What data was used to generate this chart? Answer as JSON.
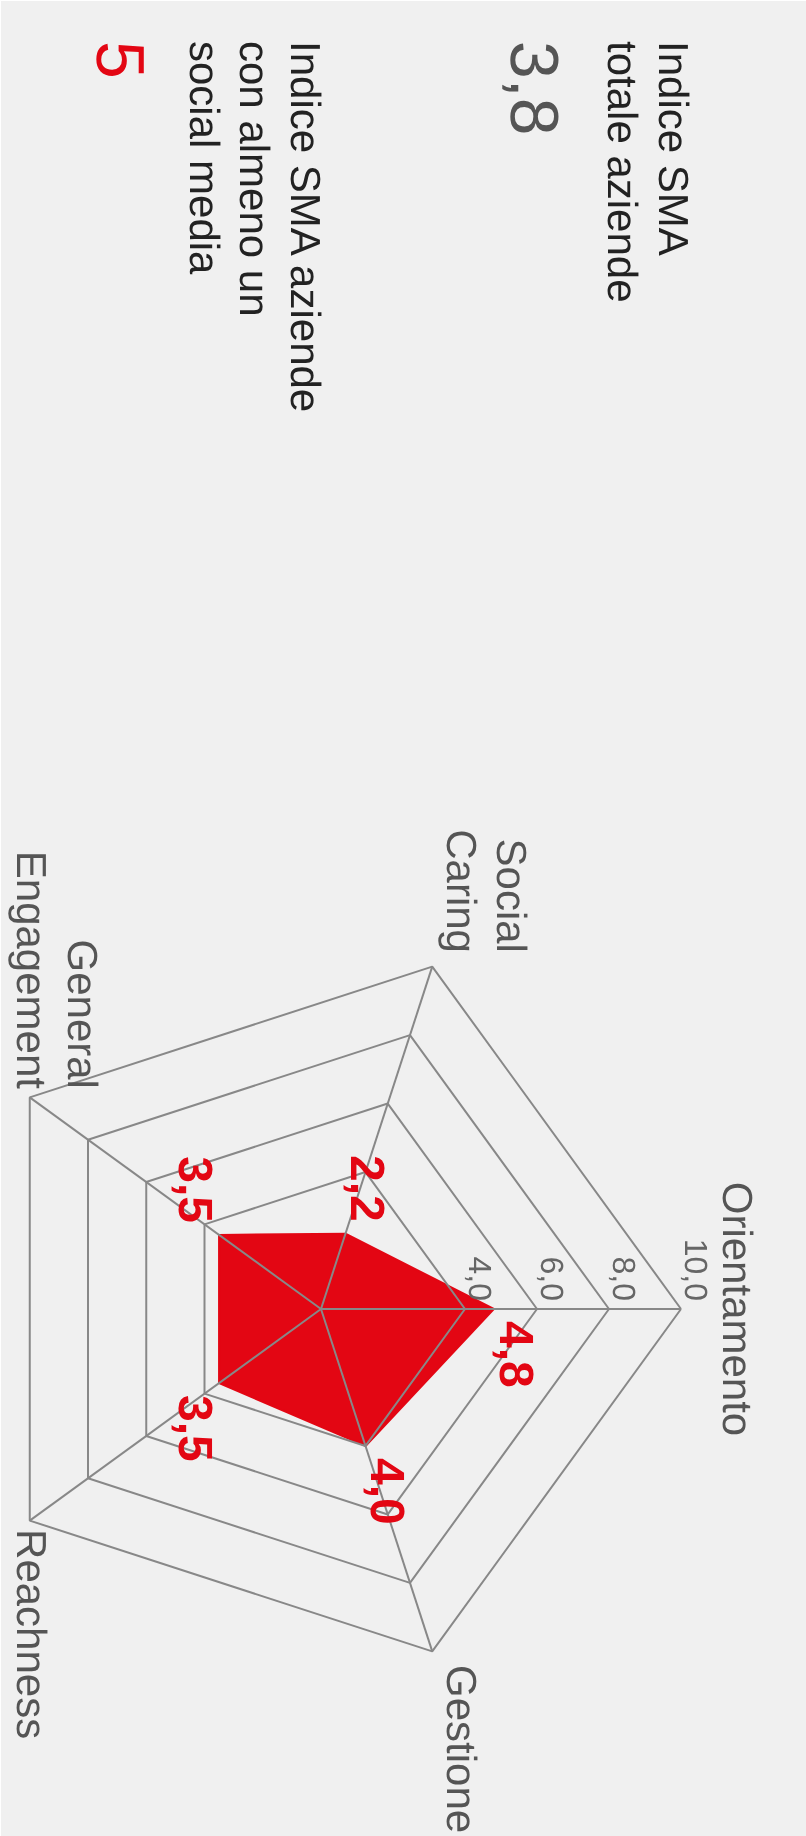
{
  "chart_data": [
    {
      "type": "other",
      "annotations": [
        "Indice SMA totale aziende",
        "3,8",
        "Indice SMA aziende con almeno un social media",
        "5"
      ],
      "colors": [
        "#222222",
        "#555555",
        "#222222",
        "#e30613"
      ]
    },
    {
      "type": "radar",
      "categories": [
        "Orientamento",
        "Gestione",
        "Reachness",
        "General Engagement",
        "Social Caring"
      ],
      "series": [
        {
          "color": "#e30613",
          "values": [
            4.8,
            4.0,
            3.5,
            3.5,
            2.2
          ],
          "value_labels": [
            "4,8",
            "4,0",
            "3,5",
            "3,5",
            "2,2"
          ]
        }
      ],
      "ylim": [
        0,
        10
      ],
      "yticks": [
        {
          "value": 4,
          "label": "4,0"
        },
        {
          "value": 6,
          "label": "6,0"
        },
        {
          "value": 8,
          "label": "8,0"
        },
        {
          "value": 10,
          "label": "10,0"
        }
      ]
    }
  ]
}
